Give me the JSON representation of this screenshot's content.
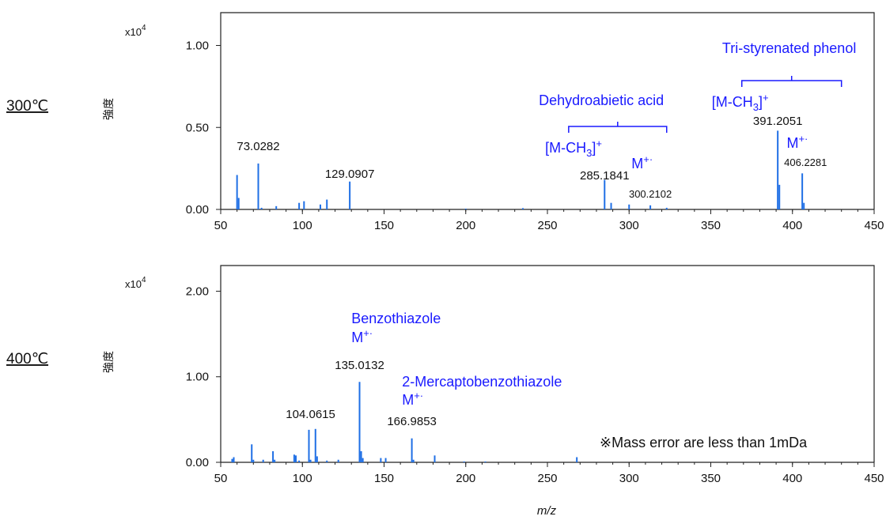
{
  "chart_data": [
    {
      "type": "bar",
      "condition_label": "300℃",
      "ylabel": "強度",
      "y_multiplier": "x10",
      "y_multiplier_exp": "4",
      "xlabel": "",
      "xlim": [
        50,
        450
      ],
      "ylim": [
        0,
        1.2
      ],
      "xticks": [
        "50",
        "100",
        "150",
        "200",
        "250",
        "300",
        "350",
        "400",
        "450"
      ],
      "yticks": [
        {
          "value": 0,
          "label": "0.00"
        },
        {
          "value": 0.5,
          "label": "0.50"
        },
        {
          "value": 1.0,
          "label": "1.00"
        }
      ],
      "peaks": [
        {
          "x": 60,
          "y": 0.21
        },
        {
          "x": 61,
          "y": 0.07
        },
        {
          "x": 73,
          "y": 0.28
        },
        {
          "x": 75,
          "y": 0.01
        },
        {
          "x": 84,
          "y": 0.02
        },
        {
          "x": 98,
          "y": 0.04
        },
        {
          "x": 101,
          "y": 0.05
        },
        {
          "x": 111,
          "y": 0.03
        },
        {
          "x": 115,
          "y": 0.06
        },
        {
          "x": 129,
          "y": 0.17
        },
        {
          "x": 200,
          "y": 0.005
        },
        {
          "x": 235,
          "y": 0.008
        },
        {
          "x": 285,
          "y": 0.18
        },
        {
          "x": 289,
          "y": 0.04
        },
        {
          "x": 300,
          "y": 0.03
        },
        {
          "x": 313,
          "y": 0.025
        },
        {
          "x": 323,
          "y": 0.01
        },
        {
          "x": 391,
          "y": 0.48
        },
        {
          "x": 392,
          "y": 0.15
        },
        {
          "x": 406,
          "y": 0.22
        },
        {
          "x": 407,
          "y": 0.04
        }
      ],
      "labels": [
        {
          "text": "73.0282",
          "x": 73,
          "dy": 75,
          "small": false
        },
        {
          "text": "129.0907",
          "x": 129,
          "dy": 40,
          "small": false
        },
        {
          "text": "285.1841",
          "x": 285,
          "dy": 38,
          "small": false
        },
        {
          "text": "300.2102",
          "x": 313,
          "dy": 15,
          "small": true
        },
        {
          "text": "391.2051",
          "x": 391,
          "dy": 107,
          "small": false
        },
        {
          "text": "406.2281",
          "x": 408,
          "dy": 55,
          "small": true
        }
      ],
      "annotations": [
        {
          "text": "Dehydroabietic acid",
          "x": 283,
          "dy": 132
        },
        {
          "text": "[M-CH",
          "sub": "3",
          "tail": "]",
          "sup": "+",
          "x": 266,
          "dy": 72
        },
        {
          "text": "M",
          "sup": "+·",
          "x": 308,
          "dy": 52
        },
        {
          "text": "Tri-styrenated phenol",
          "x": 398,
          "dy": 198
        },
        {
          "text": "[M-CH",
          "sub": "3",
          "tail": "]",
          "sup": "+",
          "x": 368,
          "dy": 130
        },
        {
          "text": "M",
          "sup": "+·",
          "x": 403,
          "dy": 78
        }
      ],
      "brackets": [
        {
          "x1": 263,
          "x2": 323,
          "dy": 105
        },
        {
          "x1": 369,
          "x2": 430,
          "dy": 163
        }
      ]
    },
    {
      "type": "bar",
      "condition_label": "400℃",
      "ylabel": "強度",
      "y_multiplier": "x10",
      "y_multiplier_exp": "4",
      "xlabel": "m/z",
      "xlim": [
        50,
        450
      ],
      "ylim": [
        0,
        2.3
      ],
      "xticks": [
        "50",
        "100",
        "150",
        "200",
        "250",
        "300",
        "350",
        "400",
        "450"
      ],
      "yticks": [
        {
          "value": 0,
          "label": "0.00"
        },
        {
          "value": 1.0,
          "label": "1.00"
        },
        {
          "value": 2.0,
          "label": "2.00"
        }
      ],
      "peaks": [
        {
          "x": 57,
          "y": 0.04
        },
        {
          "x": 58,
          "y": 0.06
        },
        {
          "x": 69,
          "y": 0.21
        },
        {
          "x": 70,
          "y": 0.03
        },
        {
          "x": 76,
          "y": 0.03
        },
        {
          "x": 82,
          "y": 0.13
        },
        {
          "x": 83,
          "y": 0.03
        },
        {
          "x": 95,
          "y": 0.09
        },
        {
          "x": 96,
          "y": 0.08
        },
        {
          "x": 98,
          "y": 0.02
        },
        {
          "x": 104,
          "y": 0.38
        },
        {
          "x": 105,
          "y": 0.03
        },
        {
          "x": 108,
          "y": 0.39
        },
        {
          "x": 109,
          "y": 0.07
        },
        {
          "x": 115,
          "y": 0.02
        },
        {
          "x": 122,
          "y": 0.03
        },
        {
          "x": 135,
          "y": 0.94
        },
        {
          "x": 136,
          "y": 0.13
        },
        {
          "x": 137,
          "y": 0.05
        },
        {
          "x": 148,
          "y": 0.05
        },
        {
          "x": 151,
          "y": 0.05
        },
        {
          "x": 167,
          "y": 0.28
        },
        {
          "x": 168,
          "y": 0.03
        },
        {
          "x": 181,
          "y": 0.08
        },
        {
          "x": 199,
          "y": 0.01
        },
        {
          "x": 212,
          "y": 0.01
        },
        {
          "x": 268,
          "y": 0.06
        }
      ],
      "labels": [
        {
          "text": "104.0615",
          "x": 105,
          "dy": 56,
          "small": false
        },
        {
          "text": "135.0132",
          "x": 135,
          "dy": 118,
          "small": false
        },
        {
          "text": "166.9853",
          "x": 167,
          "dy": 47,
          "small": false
        }
      ],
      "annotations": [
        {
          "text": "Benzothiazole",
          "x": 130,
          "dy": 176,
          "anchor": "start"
        },
        {
          "text": "M",
          "sup": "+·",
          "x": 130,
          "dy": 152,
          "anchor": "start"
        },
        {
          "text": "2-Mercaptobenzothiazole",
          "x": 161,
          "dy": 96,
          "anchor": "start"
        },
        {
          "text": "M",
          "sup": "+·",
          "x": 161,
          "dy": 73,
          "anchor": "start"
        }
      ],
      "brackets": []
    }
  ],
  "footnote": "※Mass error are less than 1mDa"
}
